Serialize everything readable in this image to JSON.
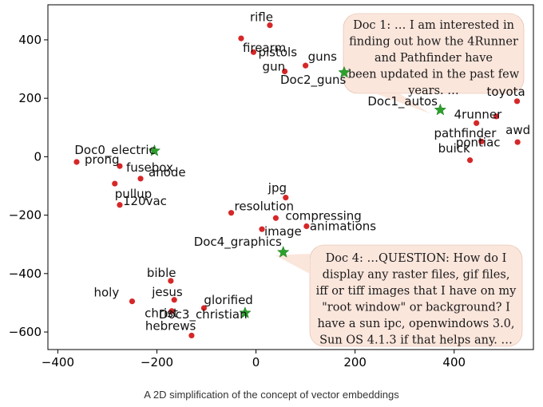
{
  "chart_data": {
    "type": "scatter",
    "xlim": [
      -420,
      560
    ],
    "ylim": [
      -660,
      520
    ],
    "xticks": [
      -400,
      -200,
      0,
      200,
      400
    ],
    "yticks": [
      -600,
      -400,
      -200,
      0,
      200,
      400
    ],
    "grid": false,
    "colors": {
      "word": "#d62728",
      "doc": "#2ca02c",
      "callout_fill": "#fbe6dc",
      "callout_stroke": "#e2b8a6"
    },
    "words": [
      {
        "label": "rifle",
        "x": 28,
        "y": 450
      },
      {
        "label": "firearm",
        "x": -30,
        "y": 405
      },
      {
        "label": "pistols",
        "x": -5,
        "y": 358
      },
      {
        "label": "gun",
        "x": 58,
        "y": 292
      },
      {
        "label": "guns",
        "x": 100,
        "y": 312
      },
      {
        "label": "toyota",
        "x": 527,
        "y": 190
      },
      {
        "label": "4runner",
        "x": 445,
        "y": 115
      },
      {
        "label": "pathfinder",
        "x": 485,
        "y": 138
      },
      {
        "label": "pontiac",
        "x": 455,
        "y": 52
      },
      {
        "label": "awd",
        "x": 528,
        "y": 50
      },
      {
        "label": "buick",
        "x": 432,
        "y": -12
      },
      {
        "label": "prong",
        "x": -362,
        "y": -18
      },
      {
        "label": "fusebox",
        "x": -275,
        "y": -32
      },
      {
        "label": "anode",
        "x": -233,
        "y": -75
      },
      {
        "label": "pullup",
        "x": -285,
        "y": -92
      },
      {
        "label": "120vac",
        "x": -275,
        "y": -165
      },
      {
        "label": "jpg",
        "x": 60,
        "y": -140
      },
      {
        "label": "resolution",
        "x": -50,
        "y": -192
      },
      {
        "label": "compressing",
        "x": 40,
        "y": -210
      },
      {
        "label": "image",
        "x": 12,
        "y": -248
      },
      {
        "label": "animations",
        "x": 102,
        "y": -238
      },
      {
        "label": "bible",
        "x": -172,
        "y": -425
      },
      {
        "label": "jesus",
        "x": -165,
        "y": -490
      },
      {
        "label": "holy",
        "x": -250,
        "y": -495
      },
      {
        "label": "christ",
        "x": -170,
        "y": -528
      },
      {
        "label": "glorified",
        "x": -105,
        "y": -518
      },
      {
        "label": "hebrews",
        "x": -130,
        "y": -612
      }
    ],
    "docs": [
      {
        "label": "Doc2_guns",
        "x": 178,
        "y": 288
      },
      {
        "label": "Doc1_autos",
        "x": 372,
        "y": 160
      },
      {
        "label": "Doc0_electric",
        "x": -205,
        "y": 20
      },
      {
        "label": "Doc4_graphics",
        "x": 55,
        "y": -327
      },
      {
        "label": "Doc3_christian",
        "x": -22,
        "y": -535
      }
    ],
    "callouts": [
      {
        "id": "doc1",
        "lines": [
          "Doc 1: … I am interested in",
          "finding out how the 4Runner",
          "and Pathfinder have",
          "been updated in the past few",
          "years. …"
        ]
      },
      {
        "id": "doc4",
        "lines": [
          "Doc 4: …QUESTION:  How do I",
          "display any raster files, gif files,",
          "iff or tiff images that I have on my",
          "\"root window\" or background?  I",
          "have a sun ipc, openwindows 3.0,",
          "Sun OS 4.1.3 if that helps any. …"
        ]
      }
    ]
  },
  "caption": "A 2D simplification of the concept of vector embeddings"
}
